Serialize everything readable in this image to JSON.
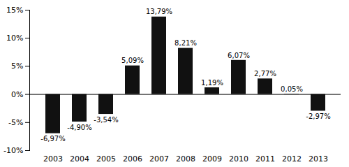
{
  "chart_data": {
    "type": "bar",
    "categories": [
      "2003",
      "2004",
      "2005",
      "2006",
      "2007",
      "2008",
      "2009",
      "2010",
      "2011",
      "2012",
      "2013"
    ],
    "values": [
      -6.97,
      -4.9,
      -3.54,
      5.09,
      13.79,
      8.21,
      1.19,
      6.07,
      2.77,
      0.05,
      -2.97
    ],
    "value_labels": [
      "-6,97%",
      "-4,90%",
      "-3,54%",
      "5,09%",
      "13,79%",
      "8,21%",
      "1,19%",
      "6,07%",
      "2,77%",
      "0,05%",
      "-2,97%"
    ],
    "data_labels": true,
    "color": "#111111",
    "ylim": [
      -10,
      15
    ],
    "yticks": [
      {
        "value": -10,
        "label": "-10%"
      },
      {
        "value": -5,
        "label": "-5%"
      },
      {
        "value": 0,
        "label": "0%"
      },
      {
        "value": 5,
        "label": "5%"
      },
      {
        "value": 10,
        "label": "10%"
      },
      {
        "value": 15,
        "label": "15%"
      }
    ],
    "grid": false
  }
}
